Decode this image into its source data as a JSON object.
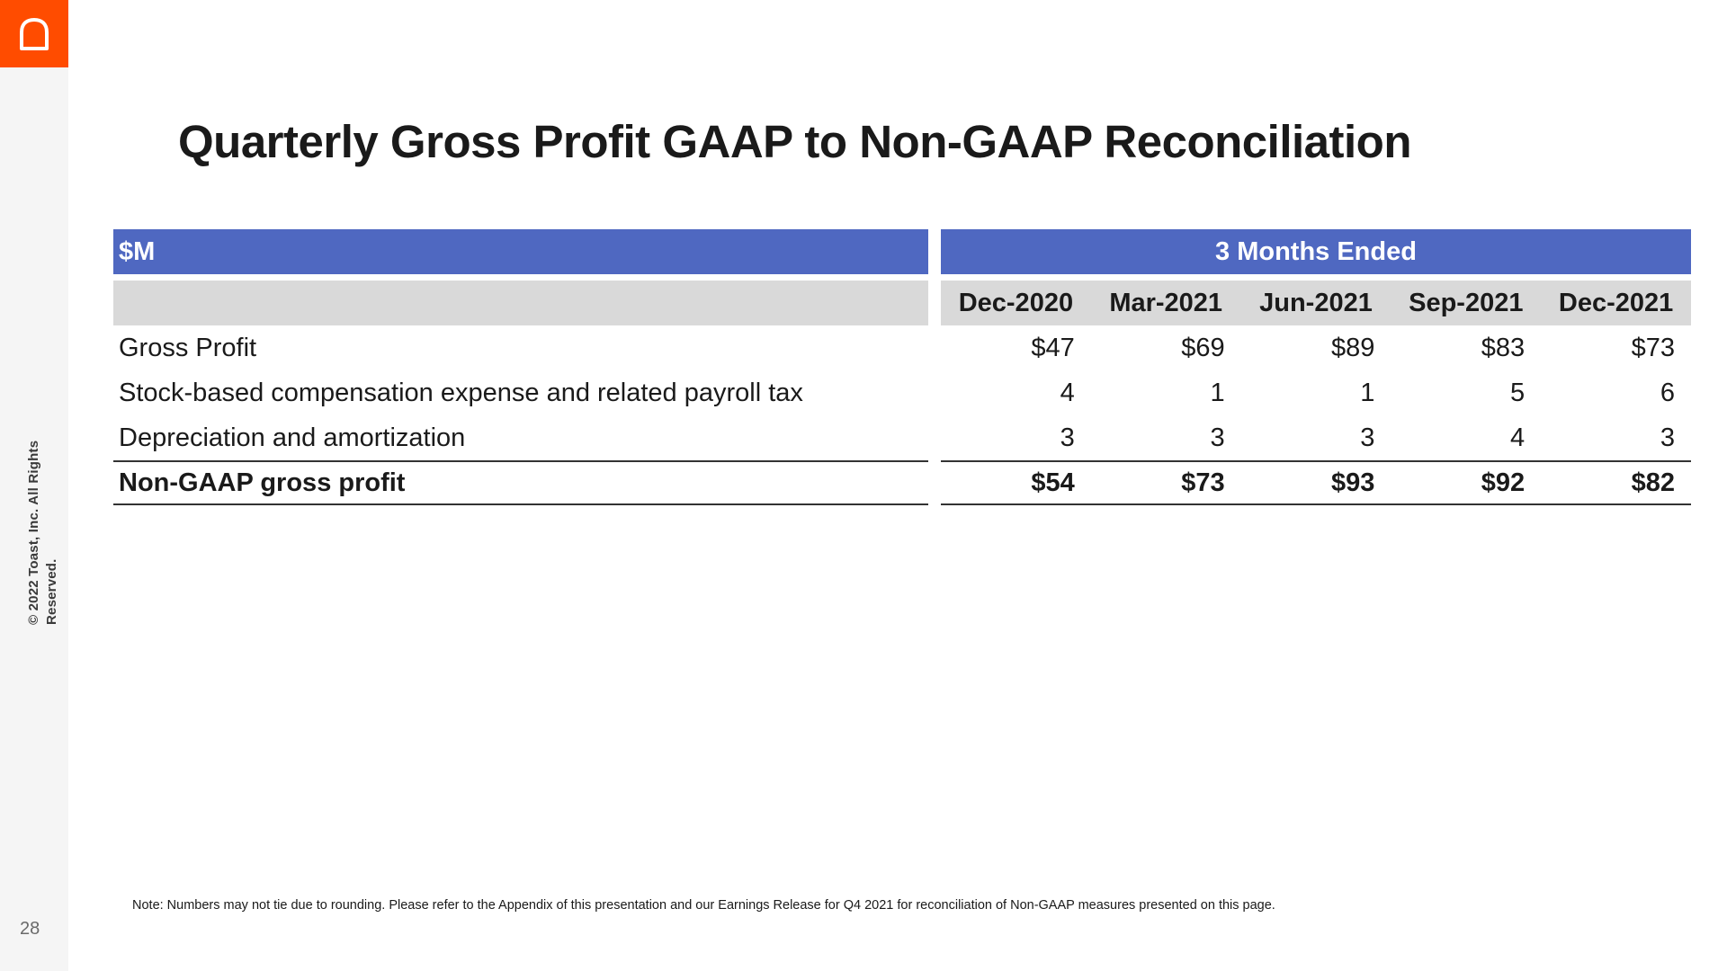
{
  "rail": {
    "copyright": "© 2022 Toast, Inc.  All Rights Reserved.",
    "page_number": "28",
    "logo_icon": "toast-logo-icon",
    "logo_color": "#ff4c00"
  },
  "title": "Quarterly Gross Profit GAAP to Non-GAAP Reconciliation",
  "table": {
    "unit_header": "$M",
    "period_header": "3 Months Ended",
    "columns": [
      "Dec-2020",
      "Mar-2021",
      "Jun-2021",
      "Sep-2021",
      "Dec-2021"
    ],
    "rows": [
      {
        "label": "Gross Profit",
        "values": [
          "$47",
          "$69",
          "$89",
          "$83",
          "$73"
        ]
      },
      {
        "label": "Stock-based compensation expense and related payroll tax",
        "values": [
          "4",
          "1",
          "1",
          "5",
          "6"
        ]
      },
      {
        "label": "Depreciation and amortization",
        "values": [
          "3",
          "3",
          "3",
          "4",
          "3"
        ]
      },
      {
        "label": "Non-GAAP gross profit",
        "values": [
          "$54",
          "$73",
          "$93",
          "$92",
          "$82"
        ]
      }
    ],
    "header_color": "#4f68c1",
    "subheader_color": "#d9d9d9"
  },
  "note": "Note: Numbers may not tie due to rounding. Please refer to the Appendix of this presentation and our Earnings Release for Q4 2021 for reconciliation of Non-GAAP measures presented on this page."
}
